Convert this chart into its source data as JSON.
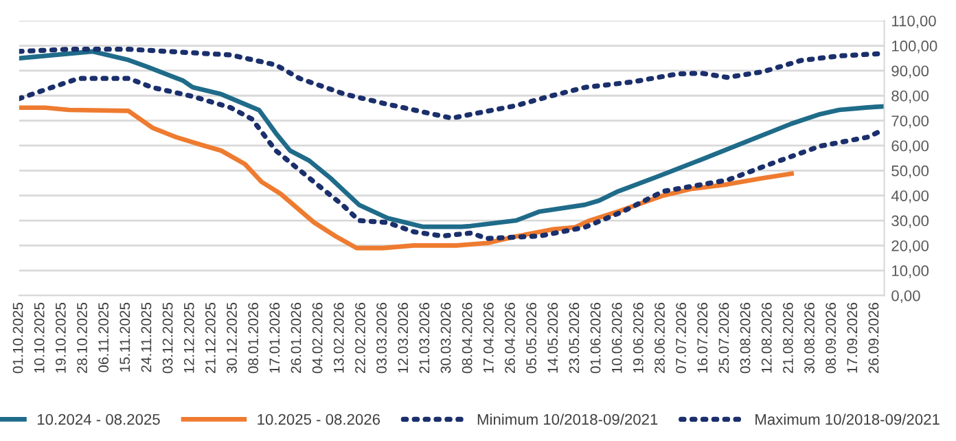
{
  "chart_data": {
    "type": "line",
    "xlim": [
      "2025-10-01",
      "2026-09-30"
    ],
    "xticks": [
      {
        "value": "2025-10-01",
        "label": "01.10.2025"
      },
      {
        "value": "2025-10-10",
        "label": "10.10.2025"
      },
      {
        "value": "2025-10-19",
        "label": "19.10.2025"
      },
      {
        "value": "2025-10-28",
        "label": "28.10.2025"
      },
      {
        "value": "2025-11-06",
        "label": "06.11.2025"
      },
      {
        "value": "2025-11-15",
        "label": "15.11.2025"
      },
      {
        "value": "2025-11-24",
        "label": "24.11.2025"
      },
      {
        "value": "2025-12-03",
        "label": "03.12.2025"
      },
      {
        "value": "2025-12-12",
        "label": "12.12.2025"
      },
      {
        "value": "2025-12-21",
        "label": "21.12.2025"
      },
      {
        "value": "2025-12-30",
        "label": "30.12.2025"
      },
      {
        "value": "2026-01-08",
        "label": "08.01.2026"
      },
      {
        "value": "2026-01-17",
        "label": "17.01.2026"
      },
      {
        "value": "2026-01-26",
        "label": "26.01.2026"
      },
      {
        "value": "2026-02-04",
        "label": "04.02.2026"
      },
      {
        "value": "2026-02-13",
        "label": "13.02.2026"
      },
      {
        "value": "2026-02-22",
        "label": "22.02.2026"
      },
      {
        "value": "2026-03-03",
        "label": "03.03.2026"
      },
      {
        "value": "2026-03-12",
        "label": "12.03.2026"
      },
      {
        "value": "2026-03-21",
        "label": "21.03.2026"
      },
      {
        "value": "2026-03-30",
        "label": "30.03.2026"
      },
      {
        "value": "2026-04-08",
        "label": "08.04.2026"
      },
      {
        "value": "2026-04-17",
        "label": "17.04.2026"
      },
      {
        "value": "2026-04-26",
        "label": "26.04.2026"
      },
      {
        "value": "2026-05-05",
        "label": "05.05.2026"
      },
      {
        "value": "2026-05-14",
        "label": "14.05.2026"
      },
      {
        "value": "2026-05-23",
        "label": "23.05.2026"
      },
      {
        "value": "2026-06-01",
        "label": "01.06.2026"
      },
      {
        "value": "2026-06-10",
        "label": "10.06.2026"
      },
      {
        "value": "2026-06-19",
        "label": "19.06.2026"
      },
      {
        "value": "2026-06-28",
        "label": "28.06.2026"
      },
      {
        "value": "2026-07-07",
        "label": "07.07.2026"
      },
      {
        "value": "2026-07-16",
        "label": "16.07.2026"
      },
      {
        "value": "2026-07-25",
        "label": "25.07.2026"
      },
      {
        "value": "2026-08-03",
        "label": "03.08.2026"
      },
      {
        "value": "2026-08-12",
        "label": "12.08.2026"
      },
      {
        "value": "2026-08-21",
        "label": "21.08.2026"
      },
      {
        "value": "2026-08-30",
        "label": "30.08.2026"
      },
      {
        "value": "2026-09-08",
        "label": "08.09.2026"
      },
      {
        "value": "2026-09-17",
        "label": "17.09.2026"
      },
      {
        "value": "2026-09-26",
        "label": "26.09.2026"
      }
    ],
    "ylim": [
      0,
      110
    ],
    "yticks": [
      {
        "value": 0,
        "label": "0,00"
      },
      {
        "value": 10,
        "label": "10,00"
      },
      {
        "value": 20,
        "label": "20,00"
      },
      {
        "value": 30,
        "label": "30,00"
      },
      {
        "value": 40,
        "label": "40,00"
      },
      {
        "value": 50,
        "label": "50,00"
      },
      {
        "value": 60,
        "label": "60,00"
      },
      {
        "value": 70,
        "label": "70,00"
      },
      {
        "value": 80,
        "label": "80,00"
      },
      {
        "value": 90,
        "label": "90,00"
      },
      {
        "value": 100,
        "label": "100,00"
      },
      {
        "value": 110,
        "label": "110,00"
      }
    ],
    "grid": "y",
    "legend": "bottom",
    "series": [
      {
        "name": "10.2024 - 08.2025",
        "color": "#1f6b8a",
        "line_style": "solid",
        "x": [
          "2025-10-01",
          "2025-11-01",
          "2025-11-16",
          "2025-11-24",
          "2025-12-09",
          "2025-12-13",
          "2025-12-25",
          "2026-01-10",
          "2026-01-17",
          "2026-01-23",
          "2026-01-31",
          "2026-02-09",
          "2026-02-21",
          "2026-03-05",
          "2026-03-20",
          "2026-04-05",
          "2026-04-09",
          "2026-04-28",
          "2026-05-08",
          "2026-05-27",
          "2026-06-02",
          "2026-06-10",
          "2026-06-25",
          "2026-07-15",
          "2026-08-03",
          "2026-08-22",
          "2026-09-03",
          "2026-09-11",
          "2026-09-23",
          "2026-09-30"
        ],
        "values": [
          95,
          97.7,
          94.3,
          91.5,
          86,
          83.4,
          80.6,
          74.2,
          65,
          58,
          54,
          47,
          36.3,
          31,
          27.5,
          27.5,
          27.8,
          30,
          33.6,
          36.3,
          38,
          41.7,
          47,
          54.4,
          61.6,
          68.8,
          72.6,
          74.3,
          75.3,
          75.7
        ]
      },
      {
        "name": "10.2025 - 08.2026",
        "color": "#ee7b30",
        "line_style": "solid",
        "x": [
          "2025-10-01",
          "2025-10-12",
          "2025-10-22",
          "2025-11-16",
          "2025-11-26",
          "2025-12-06",
          "2025-12-17",
          "2025-12-25",
          "2026-01-04",
          "2026-01-11",
          "2026-01-19",
          "2026-02-02",
          "2026-02-11",
          "2026-02-20",
          "2026-03-03",
          "2026-03-16",
          "2026-04-03",
          "2026-04-16",
          "2026-04-28",
          "2026-05-13",
          "2026-05-23",
          "2026-05-29",
          "2026-06-10",
          "2026-06-29",
          "2026-07-11",
          "2026-07-26",
          "2026-08-10",
          "2026-08-22"
        ],
        "values": [
          75.2,
          75.2,
          74.3,
          73.9,
          67.2,
          63.4,
          60.2,
          58,
          52.6,
          45.5,
          40.7,
          29.3,
          23.8,
          19,
          19,
          20,
          20,
          21,
          23.6,
          26.4,
          27.3,
          30,
          33.6,
          40,
          42.7,
          44.5,
          47,
          48.8
        ]
      },
      {
        "name": "Minimum 10/2018-09/2021",
        "color": "#1a2f6b",
        "line_style": "dotted",
        "x": [
          "2025-10-01",
          "2025-10-12",
          "2025-10-26",
          "2025-11-16",
          "2025-11-26",
          "2025-12-13",
          "2025-12-29",
          "2026-01-07",
          "2026-01-17",
          "2026-02-02",
          "2026-02-14",
          "2026-02-21",
          "2026-03-05",
          "2026-03-16",
          "2026-03-28",
          "2026-04-09",
          "2026-04-16",
          "2026-05-08",
          "2026-05-27",
          "2026-06-12",
          "2026-06-29",
          "2026-07-26",
          "2026-08-13",
          "2026-09-03",
          "2026-09-23",
          "2026-09-30"
        ],
        "values": [
          78.8,
          82.4,
          86.9,
          86.9,
          83.3,
          79.7,
          75.2,
          70.6,
          58,
          45.5,
          36.3,
          30,
          29.2,
          25.5,
          23.8,
          25,
          22.8,
          23.8,
          27.3,
          33.6,
          41.7,
          46.2,
          52.6,
          59.8,
          63.4,
          66.5
        ]
      },
      {
        "name": "Maximum 10/2018-09/2021",
        "color": "#1a2f6b",
        "line_style": "dotted",
        "x": [
          "2025-10-01",
          "2025-10-22",
          "2025-11-16",
          "2025-12-29",
          "2026-01-17",
          "2026-01-27",
          "2026-02-15",
          "2026-03-03",
          "2026-03-16",
          "2026-04-01",
          "2026-04-09",
          "2026-04-28",
          "2026-05-12",
          "2026-05-27",
          "2026-06-16",
          "2026-07-05",
          "2026-07-15",
          "2026-07-26",
          "2026-08-10",
          "2026-08-26",
          "2026-09-11",
          "2026-09-30"
        ],
        "values": [
          97.7,
          98.6,
          98.6,
          96.3,
          92.3,
          86.9,
          80.6,
          77,
          74.3,
          71,
          72.5,
          76,
          79.7,
          83.3,
          85.5,
          88.7,
          89,
          87.3,
          89.6,
          94.1,
          95.9,
          96.9
        ]
      }
    ]
  }
}
